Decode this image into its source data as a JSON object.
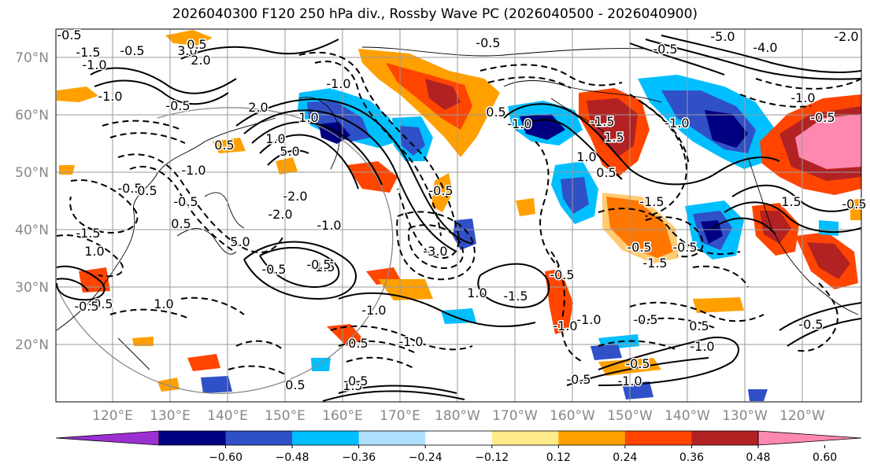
{
  "title": "2026040300 F120 250 hPa div., Rossby Wave PC (2026040500 - 2026040900)",
  "lat_labels": [
    "70°N",
    "60°N",
    "50°N",
    "40°N",
    "30°N",
    "20°N"
  ],
  "lon_labels": [
    "120°E",
    "130°E",
    "140°E",
    "150°E",
    "160°E",
    "170°E",
    "180°W",
    "170°W",
    "160°W",
    "150°W",
    "140°W",
    "130°W",
    "120°W"
  ],
  "colorbar": {
    "colors": [
      "#9b30d2",
      "#000080",
      "#3050c8",
      "#00bfff",
      "#b0e0ff",
      "#ffffff",
      "#ffeb8a",
      "#ffa000",
      "#ff4500",
      "#b22222",
      "#ff88b0"
    ],
    "tick_labels": [
      "−0.60",
      "−0.48",
      "−0.36",
      "−0.24",
      "−0.12",
      "0.12",
      "0.24",
      "0.36",
      "0.48",
      "0.60"
    ]
  },
  "contour_labels": [
    "-0.5",
    "-1.5",
    "-1.0",
    "3.0",
    "2.0",
    "-0.5",
    "0.5",
    "-1.0",
    "2.0",
    "-0.5",
    "-1.0",
    "-5.0",
    "-4.0",
    "-2.0",
    "5.0",
    "1.0",
    "-0.5",
    "0.5",
    "-2.0",
    "5.0",
    "-0.5",
    "0.5",
    "-1.5",
    "1.0",
    "-2.0",
    "-3.0",
    "-1.0",
    "-1.5",
    "-0.5",
    "-0.5",
    "1.0",
    "-0.5",
    "0.5",
    "-1.0",
    "-0.5",
    "-1.0",
    "-1.0",
    "1.5",
    "-1.5",
    "-0.5",
    "-0.5",
    "-1.5",
    "-1.5",
    "-0.5",
    "1.0",
    "-1.0",
    "-1.0",
    "0.5",
    "-1.0",
    "-1.0",
    "-0.5",
    "0.5",
    "-1.0",
    "-0.5",
    "-1.0",
    "-0.5",
    "-0.5",
    "1.5",
    "-0.5",
    "0.5",
    "-0.5",
    "-0.5",
    "1.5",
    "-1.5",
    "0.5",
    "1.0",
    "-1.0",
    "1.0",
    "0.5",
    "-0.5",
    "-0.5",
    "-0.5"
  ],
  "colors": {
    "frame": "#000000",
    "grid": "#9a9a9a",
    "axis_label": "#888888",
    "contour": "#000000"
  }
}
